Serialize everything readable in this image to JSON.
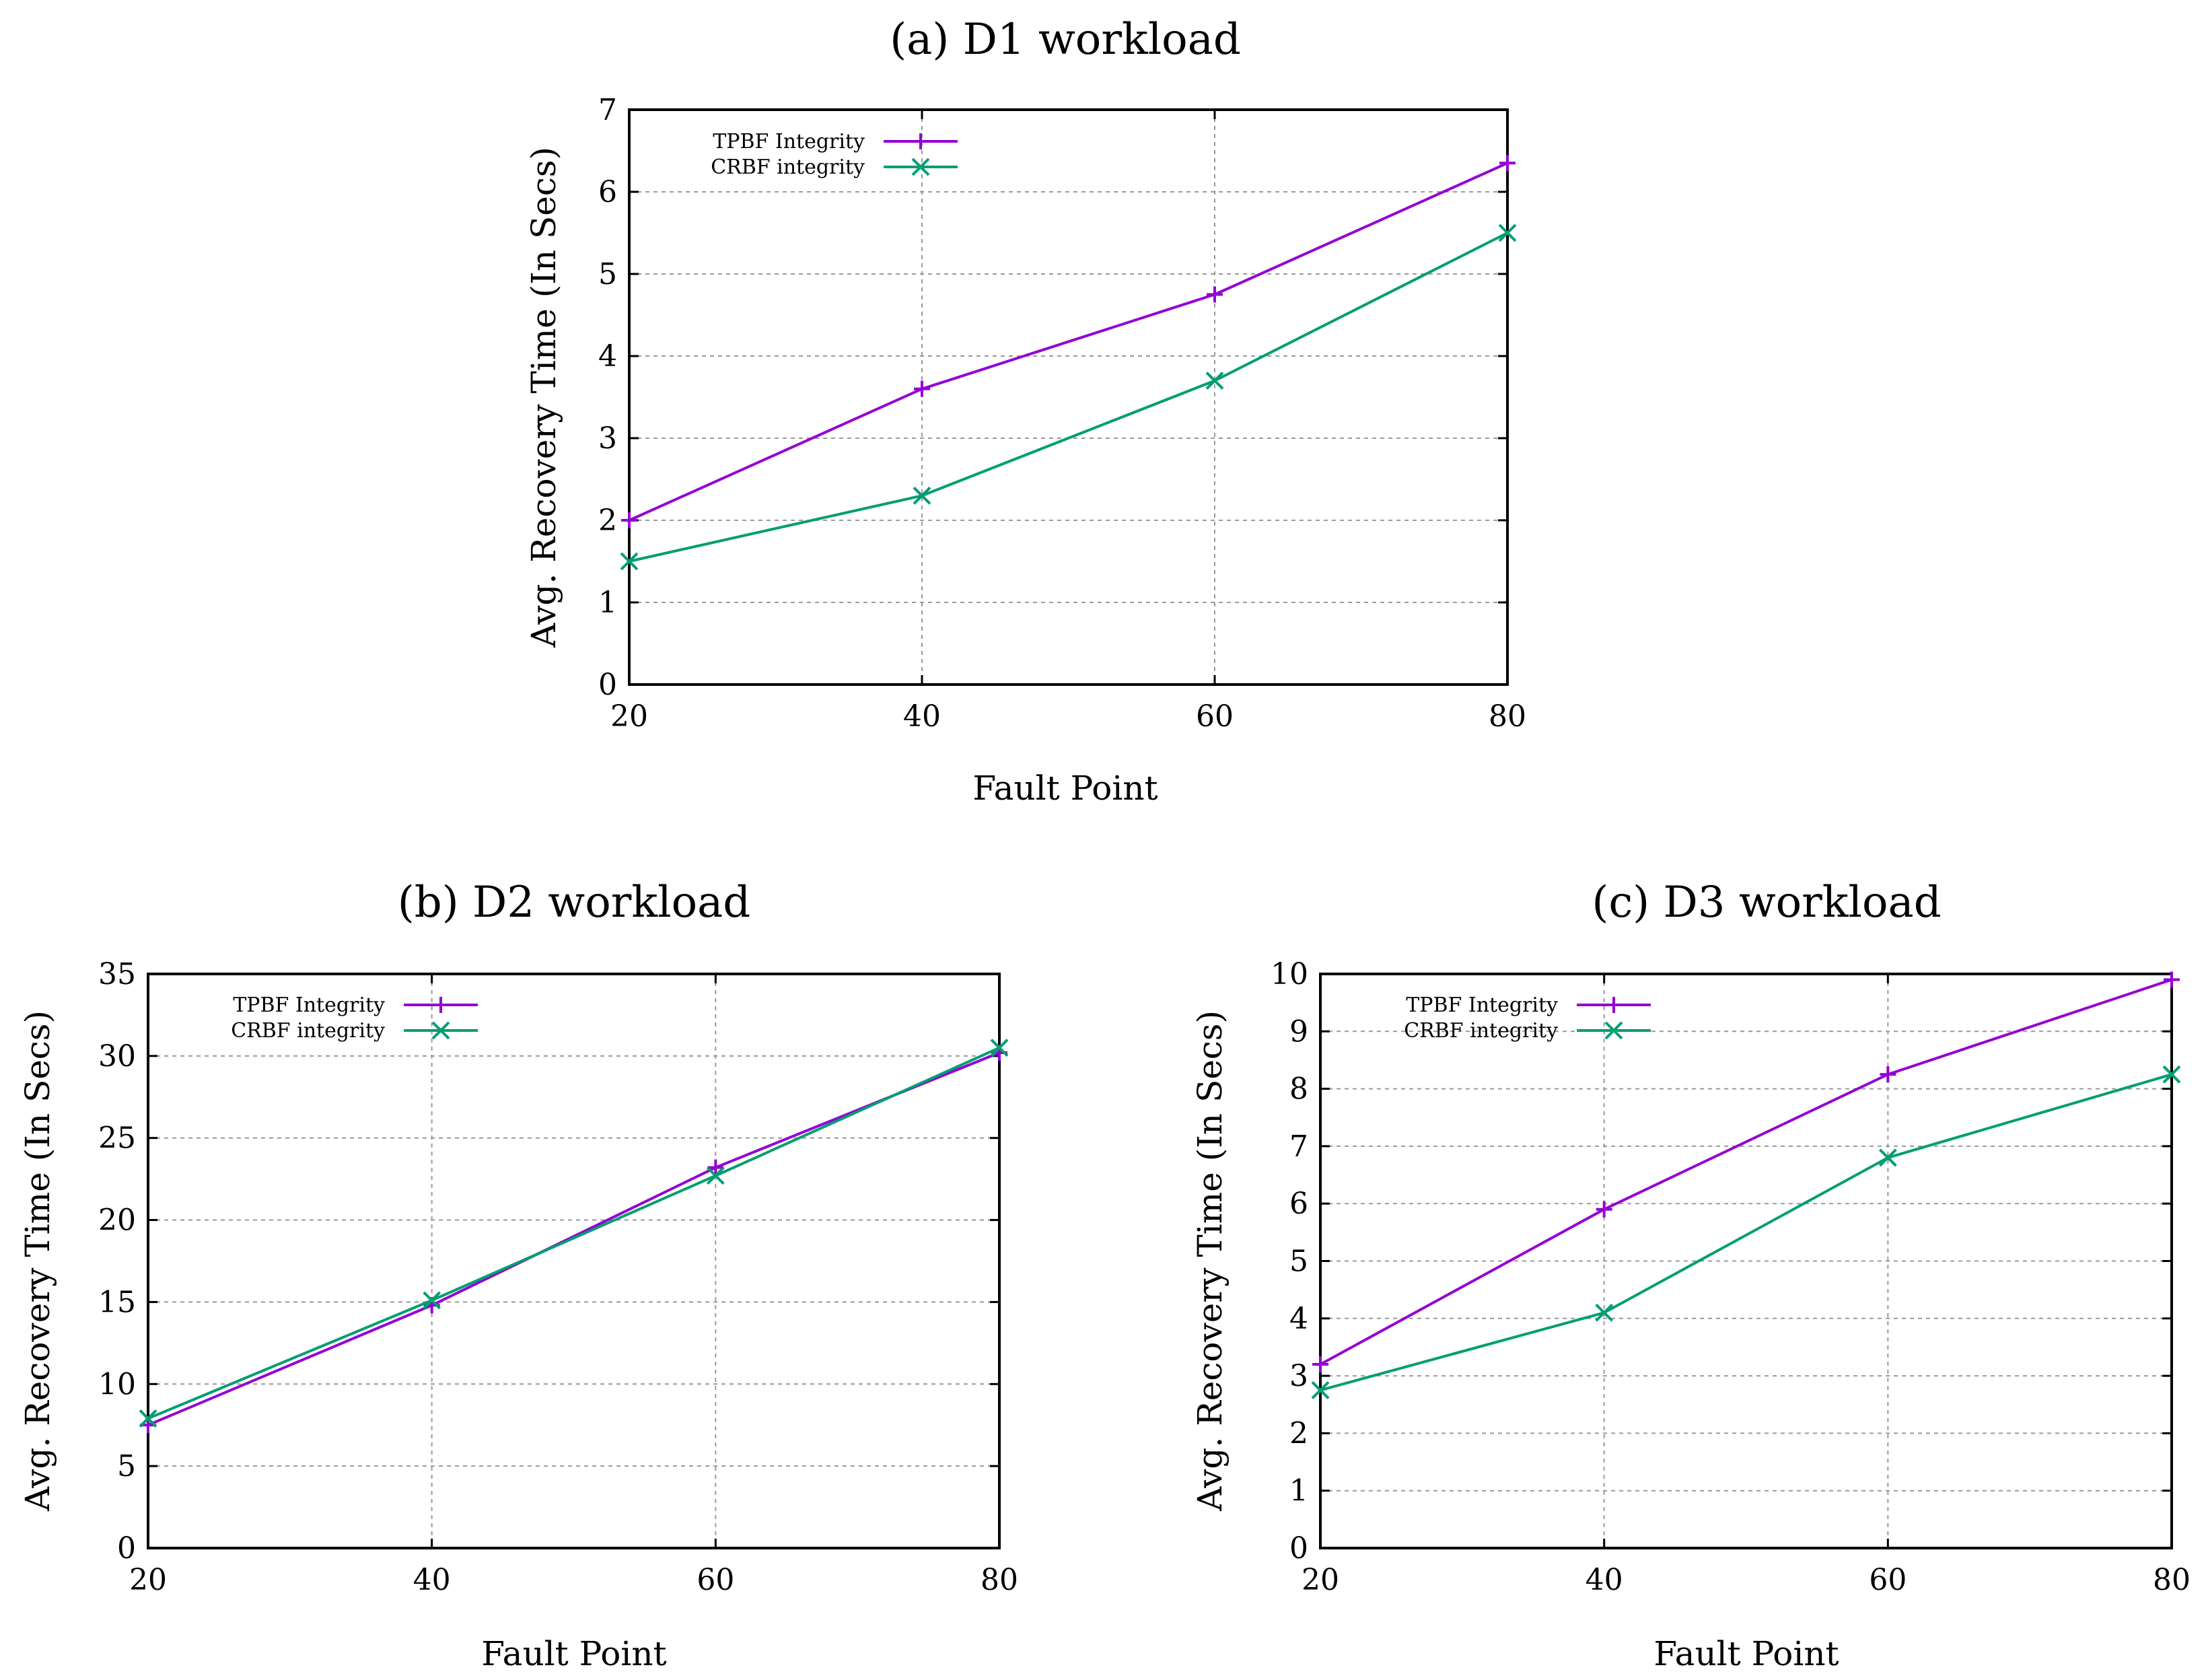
{
  "colors": {
    "tpbf": "#9400d3",
    "crbf": "#009e73"
  },
  "chart_data": [
    {
      "type": "line",
      "title": "(a) D1 workload",
      "xlabel": "Fault Point",
      "ylabel": "Avg. Recovery Time (In Secs)",
      "x": [
        20,
        40,
        60,
        80
      ],
      "xticks": [
        "20",
        "40",
        "60",
        "80"
      ],
      "xlim": [
        20,
        80
      ],
      "ylim": [
        0,
        7
      ],
      "yticks": [
        "0",
        "1",
        "2",
        "3",
        "4",
        "5",
        "6",
        "7"
      ],
      "legend_position": "top-left",
      "series": [
        {
          "name": "TPBF Integrity",
          "marker": "plus",
          "values": [
            2.0,
            3.6,
            4.75,
            6.35
          ]
        },
        {
          "name": "CRBF integrity",
          "marker": "cross",
          "values": [
            1.5,
            2.3,
            3.7,
            5.5
          ]
        }
      ]
    },
    {
      "type": "line",
      "title": "(b) D2 workload",
      "xlabel": "Fault Point",
      "ylabel": "Avg. Recovery Time (In Secs)",
      "x": [
        20,
        40,
        60,
        80
      ],
      "xticks": [
        "20",
        "40",
        "60",
        "80"
      ],
      "xlim": [
        20,
        80
      ],
      "ylim": [
        0,
        35
      ],
      "yticks": [
        "0",
        "5",
        "10",
        "15",
        "20",
        "25",
        "30",
        "35"
      ],
      "legend_position": "top-left",
      "series": [
        {
          "name": "TPBF Integrity",
          "marker": "plus",
          "values": [
            7.5,
            14.8,
            23.2,
            30.2
          ]
        },
        {
          "name": "CRBF integrity",
          "marker": "cross",
          "values": [
            7.9,
            15.1,
            22.7,
            30.5
          ]
        }
      ]
    },
    {
      "type": "line",
      "title": "(c) D3 workload",
      "xlabel": "Fault Point",
      "ylabel": "Avg. Recovery Time (In Secs)",
      "x": [
        20,
        40,
        60,
        80
      ],
      "xticks": [
        "20",
        "40",
        "60",
        "80"
      ],
      "xlim": [
        20,
        80
      ],
      "ylim": [
        0,
        10
      ],
      "yticks": [
        "0",
        "1",
        "2",
        "3",
        "4",
        "5",
        "6",
        "7",
        "8",
        "9",
        "10"
      ],
      "legend_position": "top-left",
      "series": [
        {
          "name": "TPBF Integrity",
          "marker": "plus",
          "values": [
            3.2,
            5.9,
            8.25,
            9.9
          ]
        },
        {
          "name": "CRBF integrity",
          "marker": "cross",
          "values": [
            2.75,
            4.1,
            6.8,
            8.25
          ]
        }
      ]
    }
  ]
}
